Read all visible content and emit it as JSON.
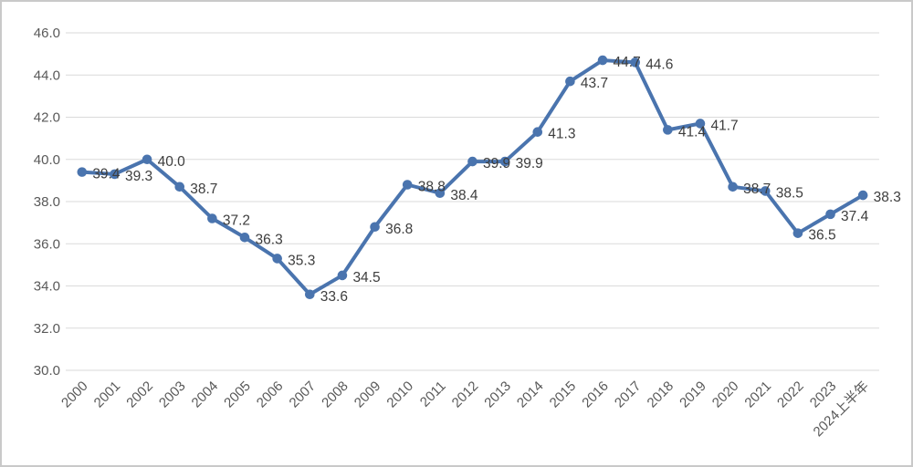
{
  "chart_data": {
    "type": "line",
    "title": "",
    "xlabel": "",
    "ylabel": "",
    "categories": [
      "2000",
      "2001",
      "2002",
      "2003",
      "2004",
      "2005",
      "2006",
      "2007",
      "2008",
      "2009",
      "2010",
      "2011",
      "2012",
      "2013",
      "2014",
      "2015",
      "2016",
      "2017",
      "2018",
      "2019",
      "2020",
      "2021",
      "2022",
      "2023",
      "2024上半年"
    ],
    "series": [
      {
        "name": "value-series",
        "color": "#4a74ae",
        "values": [
          39.4,
          39.3,
          40.0,
          38.7,
          37.2,
          36.3,
          35.3,
          33.6,
          34.5,
          36.8,
          38.8,
          38.4,
          39.9,
          39.9,
          41.3,
          43.7,
          44.7,
          44.6,
          41.4,
          41.7,
          38.7,
          38.5,
          36.5,
          37.4,
          38.3
        ]
      }
    ],
    "ylim": [
      30.0,
      46.0
    ],
    "ytick_step": 2.0,
    "ytick_decimals": 1,
    "grid": true,
    "legend_position": "none",
    "data_labels": true,
    "x_tick_rotation_deg": -45,
    "styles": {
      "gridline_color": "#dadada",
      "axis_text_color": "#595959",
      "data_label_color": "#3d3d3d",
      "frame_border_color": "#c9c9c9",
      "background_color": "#ffffff",
      "marker_shape": "circle"
    }
  }
}
